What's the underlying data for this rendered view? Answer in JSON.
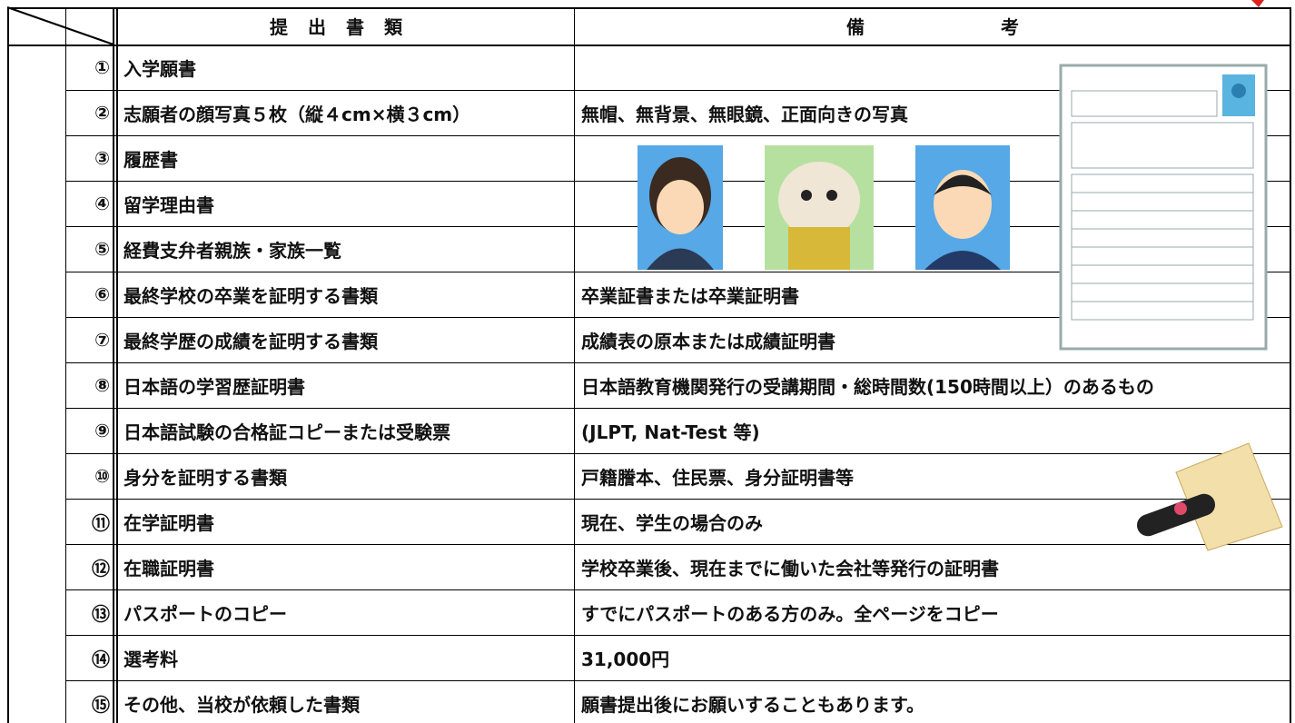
{
  "header": {
    "columns": [
      "提出書類",
      "備考"
    ]
  },
  "table": {
    "rows": [
      {
        "no": "①",
        "document": "入学願書"
      },
      {
        "no": "②",
        "document": "志願者の顔写真５枚（縦４cm×横３cm）",
        "remark": "無帽、無背景、無眼鏡、正面向きの写真"
      },
      {
        "no": "③",
        "document": "履歴書"
      },
      {
        "no": "④",
        "document": "留学理由書"
      },
      {
        "no": "⑤",
        "document": "経費支弁者親族・家族一覧"
      },
      {
        "no": "⑥",
        "document": "最終学校の卒業を証明する書類",
        "remark": "卒業証書または卒業証明書"
      },
      {
        "no": "⑦",
        "document": "最終学歴の成績を証明する書類",
        "remark": "成績表の原本または成績証明書"
      },
      {
        "no": "⑧",
        "document": "日本語の学習歴証明書",
        "remark": "日本語教育機関発行の受講期間・総時間数(150時間以上）のあるもの"
      },
      {
        "no": "⑨",
        "document": "日本語試験の合格証コピーまたは受験票",
        "remark": "(JLPT, Nat-Test 等)"
      },
      {
        "no": "⑩",
        "document": "身分を証明する書類",
        "remark": "戸籍謄本、住民票、身分証明書等"
      },
      {
        "no": "⑪",
        "document": "在学証明書",
        "remark": "現在、学生の場合のみ"
      },
      {
        "no": "⑫",
        "document": "在職証明書",
        "remark": "学校卒業後、現在までに働いた会社等発行の証明書"
      },
      {
        "no": "⑬",
        "document": "パスポートのコピー",
        "remark": "すでにパスポートのある方のみ。全ページをコピー"
      },
      {
        "no": "⑭",
        "document": "選考料",
        "remark": "31,000円"
      },
      {
        "no": "⑮",
        "document": "その他、当校が依頼した書類",
        "remark": "願書提出後にお願いすることもあります。"
      }
    ]
  }
}
